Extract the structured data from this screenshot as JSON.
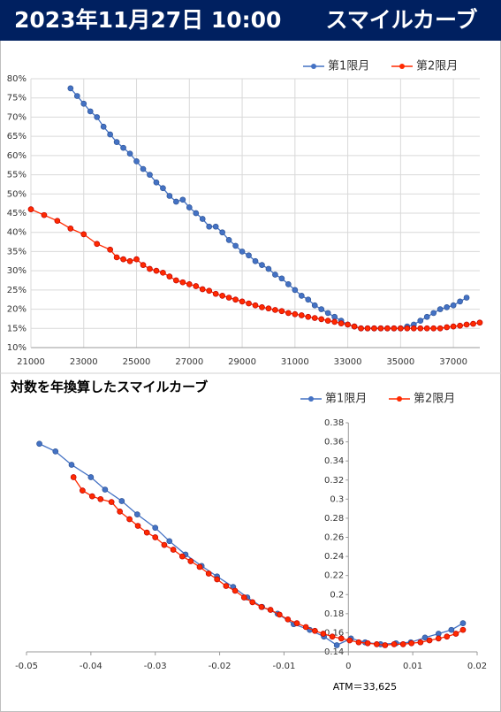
{
  "header": {
    "title": "2023年11月27日 10:00　　スマイルカーブ"
  },
  "chart_data": [
    {
      "type": "line",
      "grid": true,
      "legend": "top-right",
      "xlim": [
        21000,
        38000
      ],
      "xticks": [
        21000,
        23000,
        25000,
        27000,
        29000,
        31000,
        33000,
        35000,
        37000
      ],
      "ylim": [
        10,
        80
      ],
      "yticks": [
        {
          "value": 10,
          "label": "10%"
        },
        {
          "value": 15,
          "label": "15%"
        },
        {
          "value": 20,
          "label": "20%"
        },
        {
          "value": 25,
          "label": "25%"
        },
        {
          "value": 30,
          "label": "30%"
        },
        {
          "value": 35,
          "label": "35%"
        },
        {
          "value": 40,
          "label": "40%"
        },
        {
          "value": 45,
          "label": "45%"
        },
        {
          "value": 50,
          "label": "50%"
        },
        {
          "value": 55,
          "label": "55%"
        },
        {
          "value": 60,
          "label": "60%"
        },
        {
          "value": 65,
          "label": "65%"
        },
        {
          "value": 70,
          "label": "70%"
        },
        {
          "value": 75,
          "label": "75%"
        },
        {
          "value": 80,
          "label": "80%"
        }
      ],
      "series": [
        {
          "name": "第1限月",
          "color": "#4472c4",
          "x": [
            22500,
            22750,
            23000,
            23250,
            23500,
            23750,
            24000,
            24250,
            24500,
            24750,
            25000,
            25250,
            25500,
            25750,
            26000,
            26250,
            26500,
            26750,
            27000,
            27250,
            27500,
            27750,
            28000,
            28250,
            28500,
            28750,
            29000,
            29250,
            29500,
            29750,
            30000,
            30250,
            30500,
            30750,
            31000,
            31250,
            31500,
            31750,
            32000,
            32250,
            32500,
            32750,
            33000,
            33250,
            33500,
            33750,
            34000,
            34250,
            34500,
            34750,
            35000,
            35250,
            35500,
            35750,
            36000,
            36250,
            36500,
            36750,
            37000,
            37250,
            37500
          ],
          "values": [
            77.5,
            75.5,
            73.5,
            71.5,
            70,
            67.5,
            65.5,
            63.5,
            62,
            60.5,
            58.5,
            56.5,
            55,
            53,
            51.5,
            49.5,
            48,
            48.5,
            46.5,
            45,
            43.5,
            41.5,
            41.5,
            40,
            38,
            36.5,
            35,
            34,
            32.5,
            31.5,
            30.5,
            29,
            28,
            26.5,
            25,
            23.5,
            22.5,
            21,
            20,
            19,
            18,
            17,
            16,
            15.5,
            15,
            15,
            15,
            15,
            15,
            15,
            15,
            15.5,
            16,
            17,
            18,
            19,
            20,
            20.5,
            21,
            22,
            23
          ]
        },
        {
          "name": "第2限月",
          "color": "#ff2a00",
          "x": [
            21000,
            21500,
            22000,
            22500,
            23000,
            23500,
            24000,
            24250,
            24500,
            24750,
            25000,
            25250,
            25500,
            25750,
            26000,
            26250,
            26500,
            26750,
            27000,
            27250,
            27500,
            27750,
            28000,
            28250,
            28500,
            28750,
            29000,
            29250,
            29500,
            29750,
            30000,
            30250,
            30500,
            30750,
            31000,
            31250,
            31500,
            31750,
            32000,
            32250,
            32500,
            32750,
            33000,
            33250,
            33500,
            33750,
            34000,
            34250,
            34500,
            34750,
            35000,
            35250,
            35500,
            35750,
            36000,
            36250,
            36500,
            36750,
            37000,
            37250,
            37500,
            37750,
            38000
          ],
          "values": [
            46,
            44.5,
            43,
            41,
            39.5,
            37,
            35.5,
            33.5,
            33,
            32.5,
            33,
            31.5,
            30.5,
            30,
            29.5,
            28.5,
            27.5,
            27,
            26.5,
            26,
            25.2,
            24.8,
            24,
            23.5,
            23,
            22.5,
            22,
            21.5,
            21,
            20.5,
            20.2,
            19.8,
            19.5,
            19,
            18.7,
            18.4,
            18,
            17.7,
            17.4,
            17,
            16.7,
            16.3,
            16,
            15.5,
            15,
            15,
            15,
            15,
            15,
            15,
            15,
            15,
            15,
            15,
            15,
            15,
            15,
            15.3,
            15.5,
            15.7,
            16,
            16.2,
            16.5
          ]
        }
      ]
    },
    {
      "type": "line",
      "grid": false,
      "legend": "top-right",
      "title": "対数を年換算したスマイルカーブ",
      "annotation": "ATM＝33,625",
      "ycross": 0,
      "xlim": [
        -0.05,
        0.02
      ],
      "xticks": [
        -0.05,
        -0.04,
        -0.03,
        -0.02,
        -0.01,
        0,
        0.01,
        0.02
      ],
      "ylim": [
        0.14,
        0.38
      ],
      "yticks": [
        0.14,
        0.16,
        0.18,
        0.2,
        0.22,
        0.24,
        0.26,
        0.28,
        0.3,
        0.32,
        0.34,
        0.36,
        0.38
      ],
      "series": [
        {
          "name": "第1限月",
          "color": "#4472c4",
          "x": [
            -0.048,
            -0.0455,
            -0.043,
            -0.04,
            -0.0378,
            -0.0352,
            -0.0328,
            -0.03,
            -0.0278,
            -0.0253,
            -0.0228,
            -0.0204,
            -0.0179,
            -0.0157,
            -0.0134,
            -0.011,
            -0.0085,
            -0.006,
            -0.0038,
            -0.0018,
            0.0004,
            0.0026,
            0.005,
            0.0074,
            0.0097,
            0.0119,
            0.014,
            0.016,
            0.0178
          ],
          "values": [
            0.358,
            0.35,
            0.336,
            0.323,
            0.31,
            0.298,
            0.284,
            0.27,
            0.256,
            0.242,
            0.23,
            0.219,
            0.208,
            0.197,
            0.187,
            0.18,
            0.169,
            0.163,
            0.156,
            0.147,
            0.154,
            0.15,
            0.148,
            0.149,
            0.15,
            0.155,
            0.159,
            0.163,
            0.17
          ]
        },
        {
          "name": "第2限月",
          "color": "#ff2a00",
          "x": [
            -0.0427,
            -0.0413,
            -0.0398,
            -0.0385,
            -0.0368,
            -0.0355,
            -0.034,
            -0.0327,
            -0.0313,
            -0.03,
            -0.0286,
            -0.0272,
            -0.0258,
            -0.0245,
            -0.0231,
            -0.0217,
            -0.0204,
            -0.019,
            -0.0176,
            -0.0162,
            -0.0149,
            -0.0135,
            -0.0121,
            -0.0107,
            -0.0094,
            -0.008,
            -0.0066,
            -0.0052,
            -0.0039,
            -0.0025,
            -0.0011,
            0.0002,
            0.0016,
            0.003,
            0.0044,
            0.0057,
            0.0071,
            0.0085,
            0.0098,
            0.0112,
            0.0126,
            0.014,
            0.0153,
            0.0167,
            0.0178
          ],
          "values": [
            0.323,
            0.309,
            0.303,
            0.3,
            0.297,
            0.287,
            0.279,
            0.272,
            0.265,
            0.26,
            0.252,
            0.247,
            0.24,
            0.235,
            0.229,
            0.222,
            0.216,
            0.209,
            0.204,
            0.197,
            0.192,
            0.187,
            0.184,
            0.179,
            0.174,
            0.17,
            0.166,
            0.162,
            0.159,
            0.156,
            0.154,
            0.152,
            0.15,
            0.149,
            0.148,
            0.147,
            0.148,
            0.148,
            0.149,
            0.15,
            0.152,
            0.154,
            0.156,
            0.159,
            0.163
          ]
        }
      ]
    }
  ]
}
